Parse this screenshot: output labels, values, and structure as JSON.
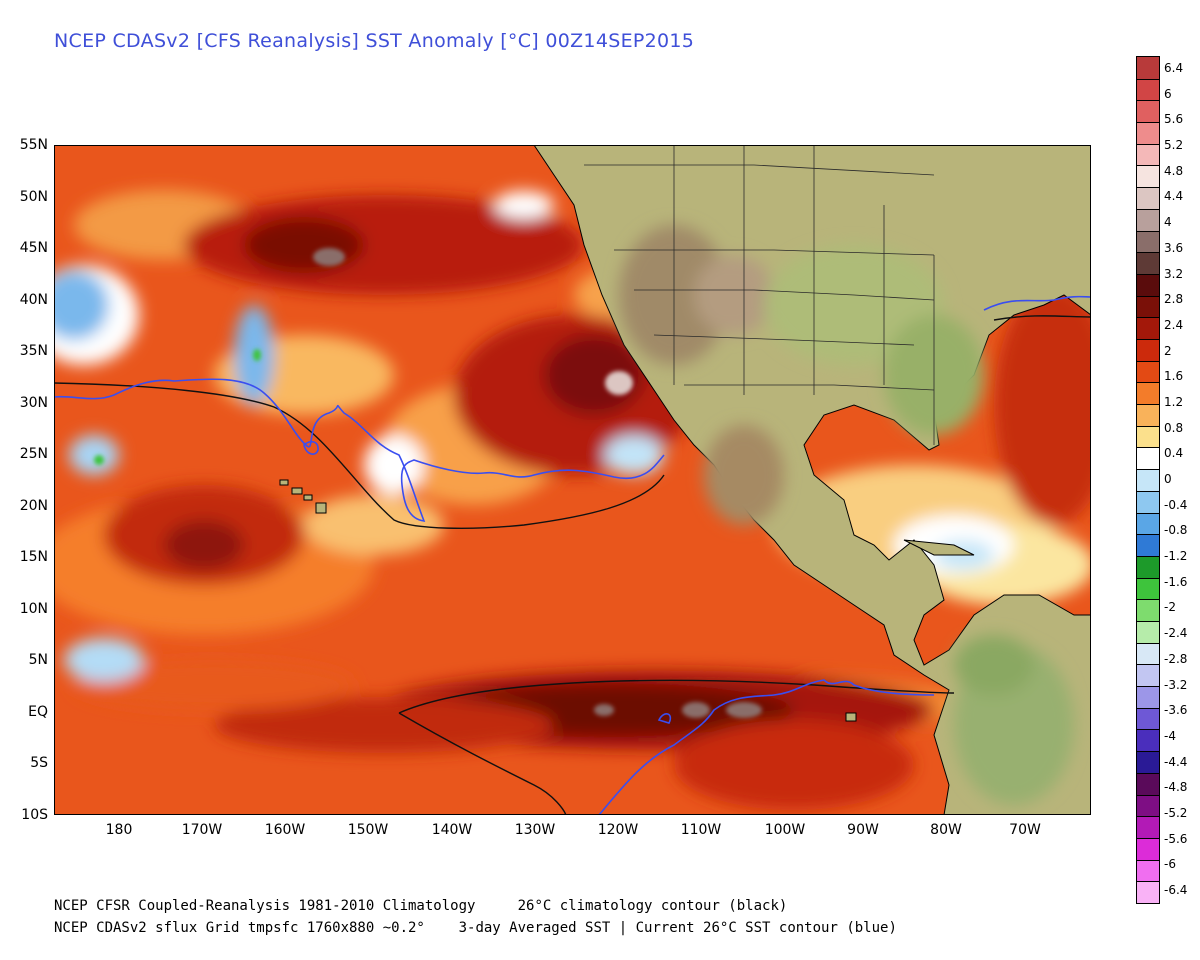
{
  "title": "NCEP CDASv2 [CFS Reanalysis] SST Anomaly [°C] 00Z14SEP2015",
  "y_axis": [
    "55N",
    "50N",
    "45N",
    "40N",
    "35N",
    "30N",
    "25N",
    "20N",
    "15N",
    "10N",
    "5N",
    "EQ",
    "5S",
    "10S"
  ],
  "x_axis": [
    "180",
    "170W",
    "160W",
    "150W",
    "140W",
    "130W",
    "120W",
    "110W",
    "100W",
    "90W",
    "80W",
    "70W"
  ],
  "colorbar": {
    "labels": [
      "6.4",
      "6",
      "5.6",
      "5.2",
      "4.8",
      "4.4",
      "4",
      "3.6",
      "3.2",
      "2.8",
      "2.4",
      "2",
      "1.6",
      "1.2",
      "0.8",
      "0.4",
      "0",
      "-0.4",
      "-0.8",
      "-1.2",
      "-1.6",
      "-2",
      "-2.4",
      "-2.8",
      "-3.2",
      "-3.6",
      "-4",
      "-4.4",
      "-4.8",
      "-5.2",
      "-5.6",
      "-6",
      "-6.4"
    ],
    "colors": [
      "#b83a3a",
      "#d14545",
      "#e06060",
      "#ee8c8c",
      "#f4b8b8",
      "#f6e4e0",
      "#dcc6c2",
      "#b8a09c",
      "#8a6e6a",
      "#5e3a36",
      "#5a0c0c",
      "#7a1008",
      "#a3180a",
      "#cc2a0c",
      "#e34a14",
      "#f37c2a",
      "#f9b25a",
      "#fbe08c",
      "#ffffff",
      "#c6e6f8",
      "#8ec8f0",
      "#5aa6e6",
      "#2f7ad6",
      "#1d9a2a",
      "#3ec43c",
      "#7edc6e",
      "#b6ecaa",
      "#d8e8f6",
      "#c2c6f2",
      "#9c96e8",
      "#6e58d6",
      "#4a2ebc",
      "#2a1a96",
      "#5a0a5a",
      "#7e0e84",
      "#b21ab6",
      "#dc2cd8",
      "#f06ef0",
      "#f9b2f6"
    ]
  },
  "footer": {
    "line1_left": "NCEP CFSR Coupled-Reanalysis 1981-2010 Climatology",
    "line1_right": "26°C climatology contour (black)",
    "line2_left": "NCEP CDASv2 sflux Grid tmpsfc 1760x880 ~0.2°",
    "line2_right": "3-day Averaged SST | Current 26°C SST contour (blue)"
  }
}
